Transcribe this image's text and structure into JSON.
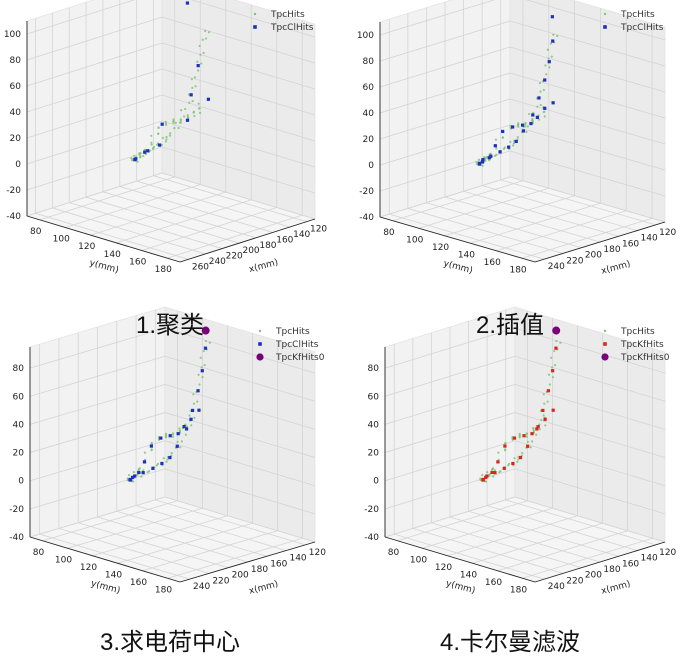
{
  "chart_data": [
    {
      "type": "scatter",
      "caption": "1.聚类",
      "xlabel": "x(mm)",
      "ylabel": "y(mm)",
      "zlim": [
        -40,
        110
      ],
      "z_ticks": [
        "-40",
        "-20",
        "0",
        "20",
        "40",
        "60",
        "80",
        "100"
      ],
      "y_ticks": [
        "80",
        "100",
        "120",
        "140",
        "160",
        "180"
      ],
      "x_ticks": [
        "260",
        "240",
        "220",
        "200",
        "180",
        "160",
        "140",
        "120"
      ],
      "grid": true,
      "legend_position": "top-right",
      "legend": [
        {
          "name": "TpcHits",
          "color": "#7cc576",
          "marker": "dot-small"
        },
        {
          "name": "TpcClHits",
          "color": "#1f2fbf",
          "marker": "square"
        }
      ],
      "series": [
        {
          "name": "TpcHits",
          "color": "#7cc576",
          "points_xyz": [
            [
              228,
              78,
              70
            ],
            [
              225,
              85,
              62
            ],
            [
              221,
              93,
              55
            ],
            [
              219,
              101,
              50
            ],
            [
              217,
              109,
              46
            ],
            [
              214,
              118,
              41
            ],
            [
              211,
              127,
              30
            ],
            [
              208,
              135,
              15
            ],
            [
              204,
              143,
              8
            ],
            [
              199,
              151,
              1
            ],
            [
              192,
              158,
              -4
            ],
            [
              182,
              164,
              -6
            ],
            [
              170,
              168,
              -7
            ],
            [
              158,
              170,
              -7
            ],
            [
              148,
              172,
              -7
            ],
            [
              138,
              173,
              -5
            ],
            [
              130,
              174,
              -2
            ],
            [
              126,
              170,
              8
            ],
            [
              124,
              165,
              22
            ],
            [
              125,
              160,
              38
            ],
            [
              127,
              155,
              55
            ],
            [
              129,
              150,
              72
            ],
            [
              131,
              145,
              87
            ]
          ]
        },
        {
          "name": "TpcClHits",
          "color": "#1f2fbf",
          "points_xyz": [
            [
              229,
              72,
              77
            ],
            [
              220,
              95,
              52
            ],
            [
              213,
              120,
              40
            ],
            [
              208,
              135,
              14
            ],
            [
              199,
              151,
              1
            ],
            [
              185,
              162,
              -6
            ],
            [
              165,
              169,
              -7
            ],
            [
              145,
              172,
              -7
            ],
            [
              125,
              162,
              30
            ],
            [
              127,
              155,
              55
            ],
            [
              148,
              148,
              110
            ]
          ]
        }
      ]
    },
    {
      "type": "scatter",
      "caption": "2.插值",
      "xlabel": "x(mm)",
      "ylabel": "y(mm)",
      "zlim": [
        -40,
        110
      ],
      "z_ticks": [
        "-40",
        "-20",
        "0",
        "20",
        "40",
        "60",
        "80",
        "100"
      ],
      "y_ticks": [
        "80",
        "100",
        "120",
        "140",
        "160",
        "180"
      ],
      "x_ticks": [
        "240",
        "220",
        "200",
        "180",
        "160",
        "140",
        "120"
      ],
      "grid": true,
      "legend_position": "top-right",
      "legend": [
        {
          "name": "TpcHits",
          "color": "#7cc576",
          "marker": "dot-small"
        },
        {
          "name": "TpcClHits",
          "color": "#1f2fbf",
          "marker": "square"
        }
      ],
      "series": [
        {
          "name": "TpcHits",
          "color": "#7cc576",
          "points_xyz": [
            [
              228,
              78,
              70
            ],
            [
              225,
              85,
              62
            ],
            [
              221,
              93,
              55
            ],
            [
              219,
              101,
              50
            ],
            [
              217,
              109,
              46
            ],
            [
              214,
              118,
              41
            ],
            [
              211,
              127,
              30
            ],
            [
              208,
              135,
              15
            ],
            [
              204,
              143,
              8
            ],
            [
              199,
              151,
              1
            ],
            [
              192,
              158,
              -4
            ],
            [
              182,
              164,
              -6
            ],
            [
              170,
              168,
              -7
            ],
            [
              158,
              170,
              -7
            ],
            [
              148,
              172,
              -7
            ],
            [
              138,
              173,
              -5
            ],
            [
              130,
              174,
              -2
            ],
            [
              126,
              170,
              8
            ],
            [
              124,
              165,
              22
            ],
            [
              125,
              160,
              38
            ],
            [
              127,
              155,
              55
            ],
            [
              129,
              150,
              72
            ],
            [
              131,
              145,
              87
            ]
          ]
        },
        {
          "name": "TpcClHits",
          "color": "#1f2fbf",
          "points_xyz": [
            [
              229,
              72,
              77
            ],
            [
              227,
              80,
              70
            ],
            [
              224,
              88,
              60
            ],
            [
              220,
              96,
              52
            ],
            [
              218,
              104,
              48
            ],
            [
              215,
              114,
              43
            ],
            [
              212,
              124,
              36
            ],
            [
              209,
              132,
              22
            ],
            [
              206,
              139,
              10
            ],
            [
              201,
              148,
              3
            ],
            [
              195,
              155,
              -2
            ],
            [
              187,
              161,
              -5
            ],
            [
              177,
              166,
              -6
            ],
            [
              165,
              169,
              -7
            ],
            [
              153,
              171,
              -7
            ],
            [
              143,
              172,
              -6
            ],
            [
              134,
              173,
              -4
            ],
            [
              128,
              172,
              3
            ],
            [
              125,
              167,
              16
            ],
            [
              124,
              163,
              30
            ],
            [
              126,
              157,
              46
            ],
            [
              128,
              152,
              62
            ],
            [
              131,
              147,
              80
            ],
            [
              134,
              145,
              100
            ]
          ]
        }
      ]
    },
    {
      "type": "scatter",
      "caption": "3.求电荷中心",
      "xlabel": "x(mm)",
      "ylabel": "y(mm)",
      "zlim": [
        -40,
        95
      ],
      "z_ticks": [
        "-40",
        "-20",
        "0",
        "20",
        "40",
        "60",
        "80"
      ],
      "y_ticks": [
        "80",
        "100",
        "120",
        "140",
        "160",
        "180"
      ],
      "x_ticks": [
        "240",
        "220",
        "200",
        "180",
        "160",
        "140",
        "120"
      ],
      "grid": true,
      "legend_position": "top-right",
      "legend": [
        {
          "name": "TpcHits",
          "color": "#7cc576",
          "marker": "dot-small"
        },
        {
          "name": "TpcClHits",
          "color": "#1f2fbf",
          "marker": "square"
        },
        {
          "name": "TpcKfHits0",
          "color": "#7a007a",
          "marker": "circle-large"
        }
      ],
      "series": [
        {
          "name": "TpcHits",
          "color": "#7cc576",
          "points_xyz": [
            [
              228,
              78,
              70
            ],
            [
              225,
              85,
              62
            ],
            [
              221,
              93,
              55
            ],
            [
              219,
              101,
              50
            ],
            [
              217,
              109,
              46
            ],
            [
              214,
              118,
              41
            ],
            [
              211,
              127,
              30
            ],
            [
              208,
              135,
              15
            ],
            [
              204,
              143,
              8
            ],
            [
              199,
              151,
              1
            ],
            [
              192,
              158,
              -4
            ],
            [
              182,
              164,
              -6
            ],
            [
              170,
              168,
              -7
            ],
            [
              158,
              170,
              -7
            ],
            [
              148,
              172,
              -7
            ],
            [
              138,
              173,
              -5
            ],
            [
              130,
              174,
              -2
            ],
            [
              126,
              170,
              8
            ],
            [
              124,
              165,
              22
            ],
            [
              125,
              160,
              38
            ],
            [
              127,
              155,
              55
            ],
            [
              129,
              150,
              72
            ],
            [
              131,
              145,
              87
            ]
          ]
        },
        {
          "name": "TpcClHits",
          "color": "#1f2fbf",
          "points_xyz": [
            [
              229,
              72,
              77
            ],
            [
              227,
              80,
              68
            ],
            [
              224,
              88,
              60
            ],
            [
              220,
              96,
              52
            ],
            [
              218,
              104,
              48
            ],
            [
              215,
              114,
              43
            ],
            [
              212,
              124,
              34
            ],
            [
              209,
              132,
              20
            ],
            [
              206,
              139,
              10
            ],
            [
              201,
              148,
              3
            ],
            [
              195,
              155,
              -2
            ],
            [
              187,
              161,
              -5
            ],
            [
              177,
              166,
              -6
            ],
            [
              165,
              169,
              -7
            ],
            [
              153,
              171,
              -7
            ],
            [
              143,
              172,
              -6
            ],
            [
              134,
              173,
              -4
            ],
            [
              128,
              172,
              3
            ],
            [
              125,
              167,
              16
            ],
            [
              124,
              163,
              30
            ],
            [
              126,
              157,
              46
            ],
            [
              128,
              152,
              62
            ],
            [
              131,
              147,
              80
            ]
          ]
        },
        {
          "name": "TpcKfHits0",
          "color": "#7a007a",
          "points_xyz": [
            [
              132,
              146,
              93
            ]
          ]
        }
      ]
    },
    {
      "type": "scatter",
      "caption": "4.卡尔曼滤波",
      "xlabel": "x(mm)",
      "ylabel": "y(mm)",
      "zlim": [
        -40,
        95
      ],
      "z_ticks": [
        "-40",
        "-20",
        "0",
        "20",
        "40",
        "60",
        "80"
      ],
      "y_ticks": [
        "80",
        "100",
        "120",
        "140",
        "160",
        "180"
      ],
      "x_ticks": [
        "240",
        "220",
        "200",
        "180",
        "160",
        "140",
        "120"
      ],
      "grid": true,
      "legend_position": "top-right",
      "legend": [
        {
          "name": "TpcHits",
          "color": "#7cc576",
          "marker": "dot-small"
        },
        {
          "name": "TpcKfHits",
          "color": "#d8261c",
          "marker": "square"
        },
        {
          "name": "TpcKfHits0",
          "color": "#7a007a",
          "marker": "circle-large"
        }
      ],
      "series": [
        {
          "name": "TpcHits",
          "color": "#7cc576",
          "points_xyz": [
            [
              228,
              78,
              70
            ],
            [
              225,
              85,
              62
            ],
            [
              221,
              93,
              55
            ],
            [
              219,
              101,
              50
            ],
            [
              217,
              109,
              46
            ],
            [
              214,
              118,
              41
            ],
            [
              211,
              127,
              30
            ],
            [
              208,
              135,
              15
            ],
            [
              204,
              143,
              8
            ],
            [
              199,
              151,
              1
            ],
            [
              192,
              158,
              -4
            ],
            [
              182,
              164,
              -6
            ],
            [
              170,
              168,
              -7
            ],
            [
              158,
              170,
              -7
            ],
            [
              148,
              172,
              -7
            ],
            [
              138,
              173,
              -5
            ],
            [
              130,
              174,
              -2
            ],
            [
              126,
              170,
              8
            ],
            [
              124,
              165,
              22
            ],
            [
              125,
              160,
              38
            ],
            [
              127,
              155,
              55
            ],
            [
              129,
              150,
              72
            ],
            [
              131,
              145,
              87
            ]
          ]
        },
        {
          "name": "TpcKfHits",
          "color": "#d8261c",
          "points_xyz": [
            [
              229,
              72,
              77
            ],
            [
              227,
              80,
              68
            ],
            [
              224,
              88,
              60
            ],
            [
              220,
              96,
              52
            ],
            [
              218,
              104,
              48
            ],
            [
              215,
              114,
              43
            ],
            [
              212,
              124,
              34
            ],
            [
              209,
              132,
              20
            ],
            [
              206,
              139,
              10
            ],
            [
              201,
              148,
              3
            ],
            [
              195,
              155,
              -2
            ],
            [
              187,
              161,
              -5
            ],
            [
              177,
              166,
              -6
            ],
            [
              165,
              169,
              -7
            ],
            [
              153,
              171,
              -7
            ],
            [
              143,
              172,
              -6
            ],
            [
              134,
              173,
              -4
            ],
            [
              128,
              172,
              3
            ],
            [
              125,
              167,
              16
            ],
            [
              124,
              163,
              30
            ],
            [
              126,
              157,
              46
            ],
            [
              128,
              152,
              62
            ],
            [
              131,
              147,
              80
            ]
          ]
        },
        {
          "name": "TpcKfHits0",
          "color": "#7a007a",
          "points_xyz": [
            [
              132,
              146,
              93
            ]
          ]
        }
      ]
    }
  ]
}
